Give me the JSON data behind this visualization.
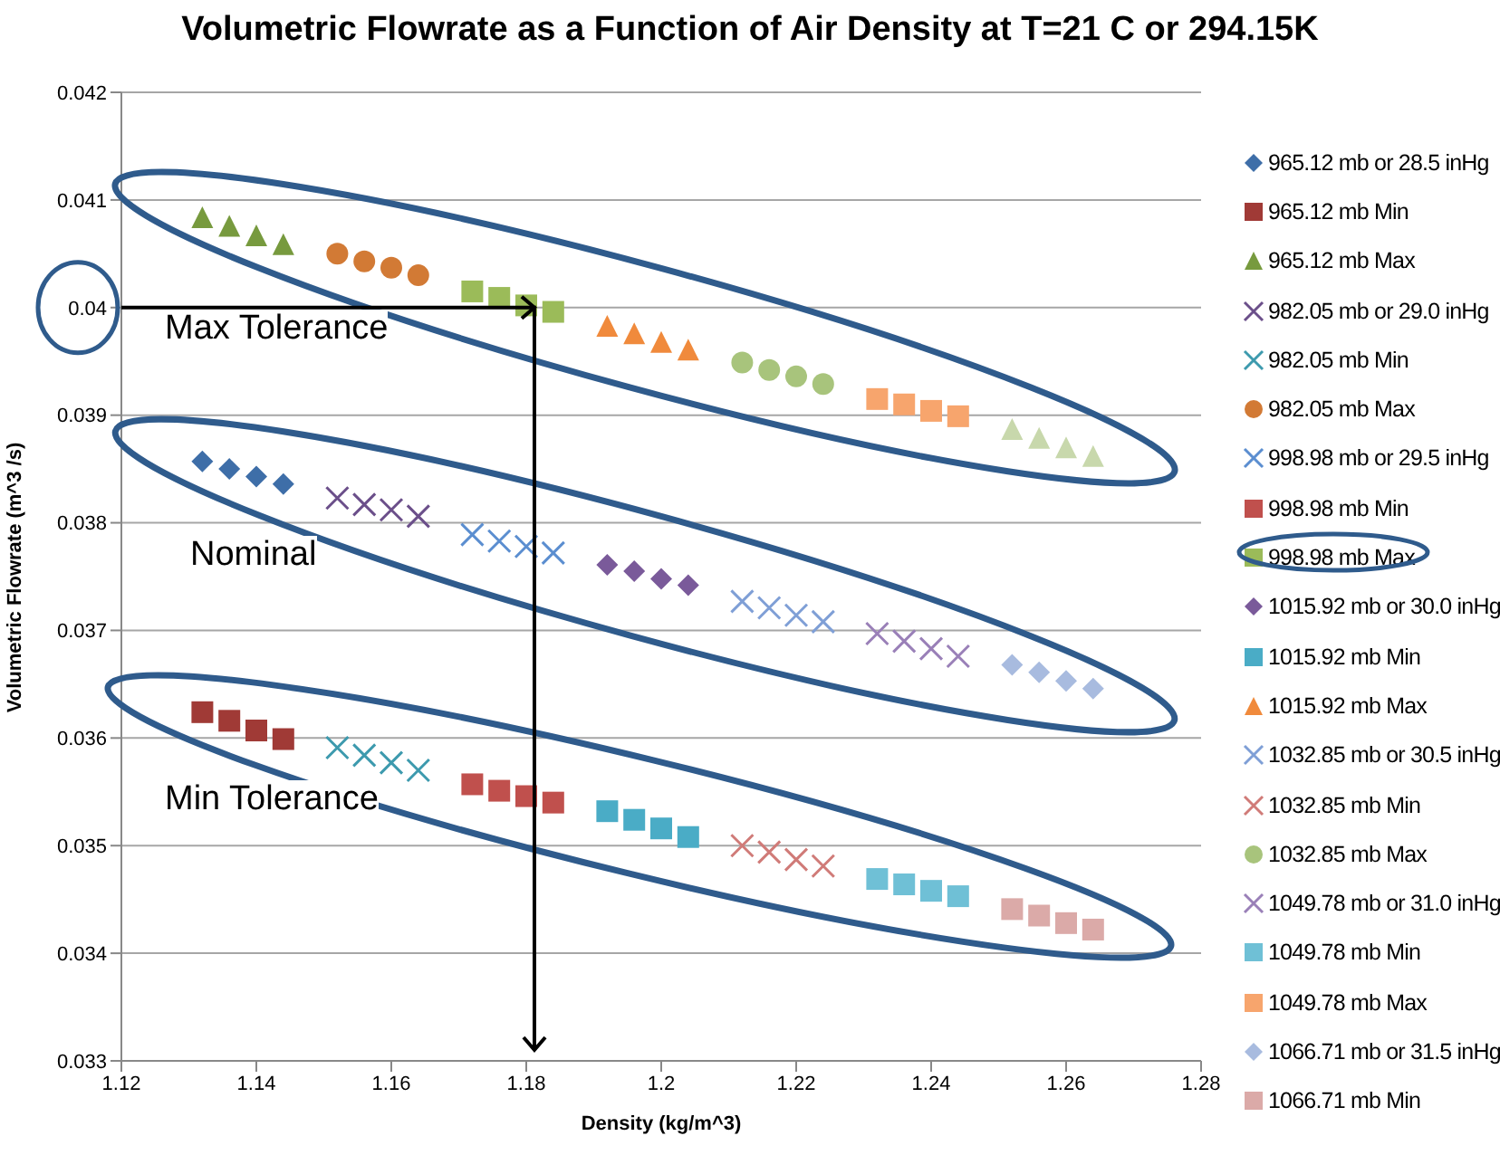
{
  "chart_data": {
    "type": "scatter",
    "title": "Volumetric Flowrate as a Function of Air Density at T=21 C or 294.15K",
    "xlabel": "Density (kg/m^3)",
    "ylabel": "Volumetric Flowrate (m^3 /s)",
    "xlim": [
      1.12,
      1.28
    ],
    "xticks": [
      1.12,
      1.14,
      1.16,
      1.18,
      1.2,
      1.22,
      1.24,
      1.26,
      1.28
    ],
    "ylim": [
      0.033,
      0.042
    ],
    "yticks": [
      0.033,
      0.034,
      0.035,
      0.036,
      0.037,
      0.038,
      0.039,
      0.04,
      0.041,
      0.042
    ],
    "grid": "y",
    "legend": "right",
    "annotations": [
      "Max Tolerance",
      "Nominal",
      "Min Tolerance"
    ],
    "series": [
      {
        "name": "965.12 mb or 28.5 inHg",
        "color": "#3e6ea8",
        "marker": "diamond",
        "x": [
          1.132,
          1.136,
          1.14,
          1.144
        ],
        "values": [
          0.03857,
          0.0385,
          0.03843,
          0.03836
        ]
      },
      {
        "name": "965.12 mb Min",
        "color": "#a03a36",
        "marker": "square",
        "x": [
          1.132,
          1.136,
          1.14,
          1.144
        ],
        "values": [
          0.03624,
          0.03616,
          0.03607,
          0.03599
        ]
      },
      {
        "name": "965.12 mb Max",
        "color": "#779a3e",
        "marker": "triangle",
        "x": [
          1.132,
          1.136,
          1.14,
          1.144
        ],
        "values": [
          0.04084,
          0.04076,
          0.04067,
          0.04059
        ]
      },
      {
        "name": "982.05 mb or 29.0 inHg",
        "color": "#6b4f8a",
        "marker": "cross",
        "x": [
          1.152,
          1.156,
          1.16,
          1.164
        ],
        "values": [
          0.03823,
          0.03817,
          0.03812,
          0.03806
        ]
      },
      {
        "name": "982.05 mb Min",
        "color": "#3d9aae",
        "marker": "cross",
        "x": [
          1.152,
          1.156,
          1.16,
          1.164
        ],
        "values": [
          0.03591,
          0.03584,
          0.03577,
          0.0357
        ]
      },
      {
        "name": "982.05 mb Max",
        "color": "#d27a35",
        "marker": "circle",
        "x": [
          1.152,
          1.156,
          1.16,
          1.164
        ],
        "values": [
          0.0405,
          0.04043,
          0.04037,
          0.0403
        ]
      },
      {
        "name": "998.98 mb or 29.5 inHg",
        "color": "#5b8ed0",
        "marker": "cross",
        "x": [
          1.172,
          1.176,
          1.18,
          1.184
        ],
        "values": [
          0.03789,
          0.03783,
          0.03778,
          0.03772
        ]
      },
      {
        "name": "998.98 mb Min",
        "color": "#c0504d",
        "marker": "square",
        "x": [
          1.172,
          1.176,
          1.18,
          1.184
        ],
        "values": [
          0.03557,
          0.03551,
          0.03546,
          0.0354
        ]
      },
      {
        "name": "998.98 mb Max",
        "color": "#9bbb59",
        "marker": "square",
        "x": [
          1.172,
          1.176,
          1.18,
          1.184
        ],
        "values": [
          0.04015,
          0.04009,
          0.04002,
          0.03996
        ]
      },
      {
        "name": "1015.92 mb or 30.0 inHg",
        "color": "#7a5a9a",
        "marker": "diamond",
        "x": [
          1.192,
          1.196,
          1.2,
          1.204
        ],
        "values": [
          0.03761,
          0.03755,
          0.03748,
          0.03742
        ]
      },
      {
        "name": "1015.92 mb Min",
        "color": "#4aacc6",
        "marker": "square",
        "x": [
          1.192,
          1.196,
          1.2,
          1.204
        ],
        "values": [
          0.03532,
          0.03524,
          0.03516,
          0.03508
        ]
      },
      {
        "name": "1015.92 mb Max",
        "color": "#f08a3c",
        "marker": "triangle",
        "x": [
          1.192,
          1.196,
          1.2,
          1.204
        ],
        "values": [
          0.03983,
          0.03976,
          0.03968,
          0.03961
        ]
      },
      {
        "name": "1032.85 mb or 30.5 inHg",
        "color": "#7f9fd6",
        "marker": "cross",
        "x": [
          1.212,
          1.216,
          1.22,
          1.224
        ],
        "values": [
          0.03727,
          0.03721,
          0.03714,
          0.03708
        ]
      },
      {
        "name": "1032.85 mb Min",
        "color": "#d07b78",
        "marker": "cross",
        "x": [
          1.212,
          1.216,
          1.22,
          1.224
        ],
        "values": [
          0.035,
          0.03494,
          0.03487,
          0.03481
        ]
      },
      {
        "name": "1032.85 mb Max",
        "color": "#a8c47c",
        "marker": "circle",
        "x": [
          1.212,
          1.216,
          1.22,
          1.224
        ],
        "values": [
          0.03949,
          0.03942,
          0.03936,
          0.03929
        ]
      },
      {
        "name": "1049.78 mb or 31.0 inHg",
        "color": "#9a80b8",
        "marker": "cross",
        "x": [
          1.232,
          1.236,
          1.24,
          1.244
        ],
        "values": [
          0.03697,
          0.0369,
          0.03683,
          0.03676
        ]
      },
      {
        "name": "1049.78 mb Min",
        "color": "#6fc0d6",
        "marker": "square",
        "x": [
          1.232,
          1.236,
          1.24,
          1.244
        ],
        "values": [
          0.03469,
          0.03464,
          0.03458,
          0.03453
        ]
      },
      {
        "name": "1049.78 mb Max",
        "color": "#f7a56d",
        "marker": "square",
        "x": [
          1.232,
          1.236,
          1.24,
          1.244
        ],
        "values": [
          0.03915,
          0.0391,
          0.03904,
          0.03899
        ]
      },
      {
        "name": "1066.71 mb or 31.5 inHg",
        "color": "#a8bbdf",
        "marker": "diamond",
        "x": [
          1.252,
          1.256,
          1.26,
          1.264
        ],
        "values": [
          0.03668,
          0.03661,
          0.03653,
          0.03646
        ]
      },
      {
        "name": "1066.71 mb Min",
        "color": "#dbaaa8",
        "marker": "square",
        "x": [
          1.252,
          1.256,
          1.26,
          1.264
        ],
        "values": [
          0.03441,
          0.03435,
          0.03428,
          0.03422
        ]
      },
      {
        "color": "#c8d8ac",
        "marker": "triangle",
        "x": [
          1.252,
          1.256,
          1.26,
          1.264
        ],
        "values": [
          0.03887,
          0.03879,
          0.0387,
          0.03862
        ]
      }
    ]
  }
}
